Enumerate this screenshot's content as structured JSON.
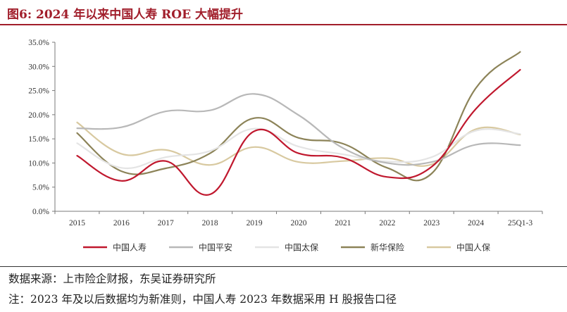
{
  "title": "图6:  2024 年以来中国人寿 ROE 大幅提升",
  "source": "数据来源：上市险企财报，东吴证券研究所",
  "note": "注：2023 年及以后数据均为新准则，中国人寿 2023 年数据采用 H 股报告口径",
  "chart_data": {
    "type": "line",
    "categories": [
      "2015",
      "2016",
      "2017",
      "2018",
      "2019",
      "2020",
      "2021",
      "2022",
      "2023",
      "2024",
      "25Q1-3"
    ],
    "ylim": [
      0,
      35
    ],
    "yticks": [
      "0.0%",
      "5.0%",
      "10.0%",
      "15.0%",
      "20.0%",
      "25.0%",
      "30.0%",
      "35.0%"
    ],
    "ytick_values": [
      0,
      5,
      10,
      15,
      20,
      25,
      30,
      35
    ],
    "xlabel": "",
    "ylabel": "",
    "grid": false,
    "legend_position": "bottom",
    "series": [
      {
        "name": "中国人寿",
        "color": "#c0182e",
        "values": [
          11.5,
          6.3,
          10.4,
          3.5,
          16.6,
          12.0,
          11.1,
          7.1,
          9.2,
          21.2,
          29.3
        ]
      },
      {
        "name": "中国平安",
        "color": "#b8b8b8",
        "values": [
          17.2,
          17.4,
          20.7,
          20.9,
          24.3,
          19.9,
          13.1,
          10.0,
          10.2,
          13.8,
          13.7
        ]
      },
      {
        "name": "中国太保",
        "color": "#e4e4e4",
        "values": [
          14.1,
          9.0,
          11.2,
          12.5,
          17.1,
          13.4,
          11.8,
          10.3,
          11.2,
          16.7,
          16.0
        ]
      },
      {
        "name": "新华保险",
        "color": "#8c8358",
        "values": [
          16.2,
          8.3,
          8.9,
          12.0,
          19.3,
          15.2,
          14.0,
          9.0,
          7.8,
          25.5,
          33.0
        ]
      },
      {
        "name": "中国人保",
        "color": "#d8c9a0",
        "values": [
          18.4,
          11.9,
          12.7,
          9.6,
          13.3,
          10.2,
          10.4,
          11.0,
          9.7,
          17.0,
          15.9
        ]
      }
    ]
  }
}
